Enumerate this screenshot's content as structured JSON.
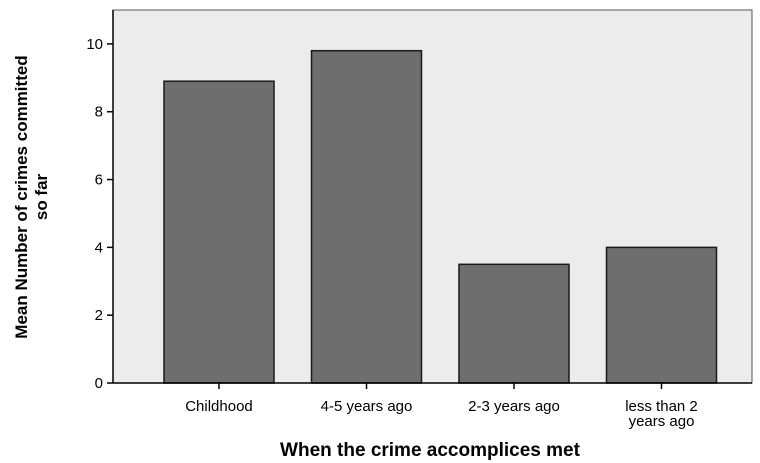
{
  "chart_data": {
    "type": "bar",
    "title": "",
    "xlabel": "When the crime accomplices met",
    "ylabel_line1": "Mean Number of crimes committed",
    "ylabel_line2": "so far",
    "categories": [
      {
        "lines": [
          "Childhood"
        ]
      },
      {
        "lines": [
          "4-5 years ago"
        ]
      },
      {
        "lines": [
          "2-3 years ago"
        ]
      },
      {
        "lines": [
          "less than 2",
          "years ago"
        ]
      }
    ],
    "values": [
      8.9,
      9.8,
      3.5,
      4.0
    ],
    "ylim": [
      0,
      11
    ],
    "yticks": [
      0,
      2,
      4,
      6,
      8,
      10
    ],
    "grid": false,
    "legend": "none",
    "colors": {
      "bar_fill": "#6e6e6e",
      "bar_stroke": "#1a1a1a",
      "plot_background": "#ececec",
      "axis": "#000000"
    }
  }
}
